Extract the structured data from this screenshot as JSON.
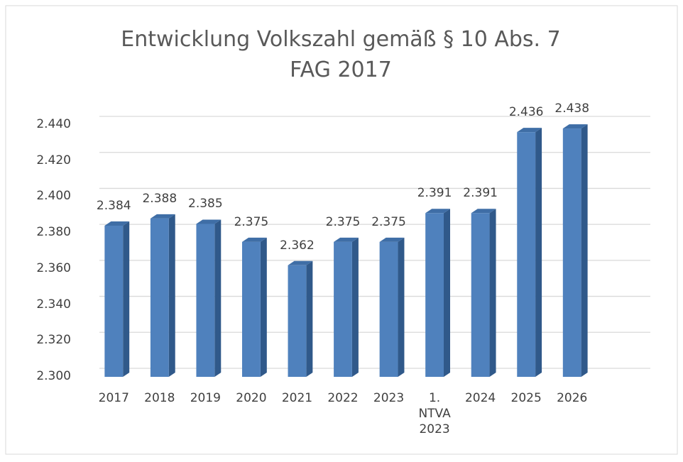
{
  "chart_data": {
    "type": "bar3d",
    "title": "Entwicklung Volkszahl gemäß § 10 Abs. 7 FAG 2017",
    "categories": [
      "2017",
      "2018",
      "2019",
      "2020",
      "2021",
      "2022",
      "2023",
      "1. NTVA 2023",
      "2024",
      "2025",
      "2026"
    ],
    "values": [
      2384,
      2388,
      2385,
      2375,
      2362,
      2375,
      2375,
      2391,
      2391,
      2436,
      2438
    ],
    "value_labels": [
      "2.384",
      "2.388",
      "2.385",
      "2.375",
      "2.362",
      "2.375",
      "2.375",
      "2.391",
      "2.391",
      "2.436",
      "2.438"
    ],
    "color": "#4f81bd",
    "ylim": [
      2300,
      2440
    ],
    "yticks": [
      {
        "value": 2300,
        "label": "2.300"
      },
      {
        "value": 2320,
        "label": "2.320"
      },
      {
        "value": 2340,
        "label": "2.340"
      },
      {
        "value": 2360,
        "label": "2.360"
      },
      {
        "value": 2380,
        "label": "2.380"
      },
      {
        "value": 2400,
        "label": "2.400"
      },
      {
        "value": 2420,
        "label": "2.420"
      },
      {
        "value": 2440,
        "label": "2.440"
      }
    ],
    "grid": true
  }
}
